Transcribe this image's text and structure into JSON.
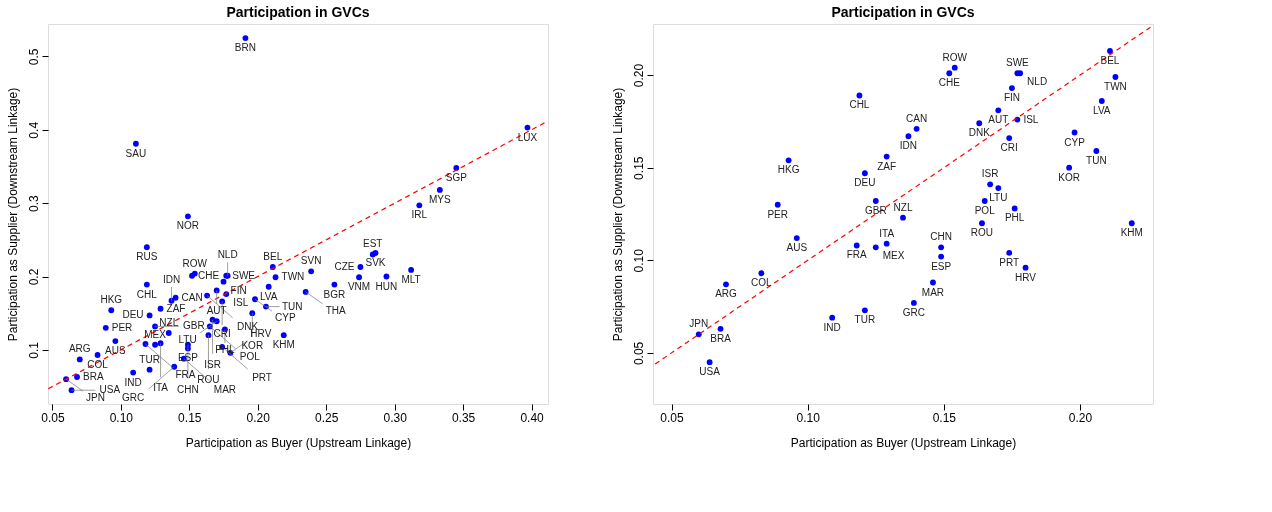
{
  "chart_data": [
    {
      "type": "scatter",
      "title": "Participation in GVCs",
      "xlabel": "Participation as Buyer (Upstream Linkage)",
      "ylabel": "Participation as Supplier (Downstream Linkage)",
      "xlim": [
        0.0468,
        0.412
      ],
      "ylim": [
        0.0262,
        0.5442
      ],
      "xticks": [
        0.05,
        {
          "value": 0.1,
          "label": "0.10"
        },
        0.15,
        {
          "value": 0.2,
          "label": "0.20"
        },
        0.25,
        {
          "value": 0.3,
          "label": "0.30"
        },
        0.35,
        {
          "value": 0.4,
          "label": "0.40"
        }
      ],
      "yticks": [
        0.1,
        0.2,
        0.3,
        0.4,
        0.5
      ],
      "grid": false,
      "series": [
        {
          "marker": "circle",
          "color": "#0000ff",
          "x": [
            0.119,
            0.093,
            0.089,
            0.096,
            0.083,
            0.07,
            0.068,
            0.06,
            0.064,
            0.109,
            0.121,
            0.121,
            0.129,
            0.125,
            0.118,
            0.125,
            0.129,
            0.135,
            0.137,
            0.14,
            0.154,
            0.152,
            0.177,
            0.178,
            0.175,
            0.17,
            0.163,
            0.177,
            0.174,
            0.211,
            0.213,
            0.208,
            0.198,
            0.206,
            0.196,
            0.219,
            0.167,
            0.17,
            0.165,
            0.176,
            0.164,
            0.149,
            0.149,
            0.146,
            0.139,
            0.174,
            0.18,
            0.191,
            0.111,
            0.149,
            0.119,
            0.397,
            0.345,
            0.333,
            0.318,
            0.286,
            0.284,
            0.275,
            0.274,
            0.294,
            0.312,
            0.239,
            0.256,
            0.235
          ],
          "values": [
            0.189,
            0.154,
            0.13,
            0.112,
            0.093,
            0.087,
            0.063,
            0.06,
            0.045,
            0.069,
            0.073,
            0.147,
            0.156,
            0.132,
            0.108,
            0.107,
            0.109,
            0.123,
            0.167,
            0.171,
            0.204,
            0.201,
            0.201,
            0.201,
            0.193,
            0.181,
            0.174,
            0.176,
            0.166,
            0.213,
            0.199,
            0.186,
            0.169,
            0.159,
            0.15,
            0.12,
            0.141,
            0.139,
            0.132,
            0.128,
            0.12,
            0.107,
            0.102,
            0.088,
            0.077,
            0.104,
            0.096,
            0.525,
            0.381,
            0.282,
            0.24,
            0.403,
            0.348,
            0.318,
            0.297,
            0.232,
            0.23,
            0.213,
            0.199,
            0.2,
            0.209,
            0.207,
            0.189,
            0.179
          ]
        },
        {
          "type": "line",
          "color": "#ff0000",
          "line_style": "dashed",
          "x": [
            0.047,
            0.412
          ],
          "values": [
            0.047,
            0.412
          ]
        }
      ],
      "annotations": [
        {
          "text": "CHL",
          "x": 0.119,
          "y": 0.189
        },
        {
          "text": "HKG",
          "x": 0.093,
          "y": 0.154
        },
        {
          "text": "PER",
          "x": 0.089,
          "y": 0.13
        },
        {
          "text": "AUS",
          "x": 0.096,
          "y": 0.112
        },
        {
          "text": "COL",
          "x": 0.083,
          "y": 0.093
        },
        {
          "text": "ARG",
          "x": 0.07,
          "y": 0.087
        },
        {
          "text": "BRA",
          "x": 0.068,
          "y": 0.063
        },
        {
          "text": "JPN",
          "x": 0.06,
          "y": 0.06
        },
        {
          "text": "USA",
          "x": 0.064,
          "y": 0.045
        },
        {
          "text": "IND",
          "x": 0.109,
          "y": 0.069
        },
        {
          "text": "TUR",
          "x": 0.121,
          "y": 0.073
        },
        {
          "text": "DEU",
          "x": 0.121,
          "y": 0.147
        },
        {
          "text": "ZAF",
          "x": 0.129,
          "y": 0.156
        },
        {
          "text": "GBR",
          "x": 0.125,
          "y": 0.132
        },
        {
          "text": "FRA",
          "x": 0.118,
          "y": 0.108
        },
        {
          "text": "MEX",
          "x": 0.125,
          "y": 0.107
        },
        {
          "text": "ITA",
          "x": 0.129,
          "y": 0.109
        },
        {
          "text": "NZL",
          "x": 0.135,
          "y": 0.123
        },
        {
          "text": "IDN",
          "x": 0.137,
          "y": 0.167
        },
        {
          "text": "CAN",
          "x": 0.14,
          "y": 0.171
        },
        {
          "text": "ROW",
          "x": 0.154,
          "y": 0.204
        },
        {
          "text": "CHE",
          "x": 0.152,
          "y": 0.201
        },
        {
          "text": "SWE",
          "x": 0.177,
          "y": 0.201
        },
        {
          "text": "NLD",
          "x": 0.178,
          "y": 0.201
        },
        {
          "text": "FIN",
          "x": 0.175,
          "y": 0.193
        },
        {
          "text": "AUT",
          "x": 0.17,
          "y": 0.181
        },
        {
          "text": "DNK",
          "x": 0.163,
          "y": 0.174
        },
        {
          "text": "ISL",
          "x": 0.177,
          "y": 0.176
        },
        {
          "text": "CRI",
          "x": 0.174,
          "y": 0.166
        },
        {
          "text": "BEL",
          "x": 0.211,
          "y": 0.213
        },
        {
          "text": "TWN",
          "x": 0.213,
          "y": 0.199
        },
        {
          "text": "LVA",
          "x": 0.208,
          "y": 0.186
        },
        {
          "text": "CYP",
          "x": 0.198,
          "y": 0.169
        },
        {
          "text": "TUN",
          "x": 0.206,
          "y": 0.159
        },
        {
          "text": "KOR",
          "x": 0.196,
          "y": 0.15
        },
        {
          "text": "KHM",
          "x": 0.219,
          "y": 0.12
        },
        {
          "text": "ISR",
          "x": 0.167,
          "y": 0.141
        },
        {
          "text": "LTU",
          "x": 0.17,
          "y": 0.139
        },
        {
          "text": "POL",
          "x": 0.165,
          "y": 0.132
        },
        {
          "text": "PHL",
          "x": 0.176,
          "y": 0.128
        },
        {
          "text": "ROU",
          "x": 0.164,
          "y": 0.12
        },
        {
          "text": "CHN",
          "x": 0.149,
          "y": 0.107
        },
        {
          "text": "ESP",
          "x": 0.149,
          "y": 0.102
        },
        {
          "text": "MAR",
          "x": 0.146,
          "y": 0.088
        },
        {
          "text": "GRC",
          "x": 0.139,
          "y": 0.077
        },
        {
          "text": "PRT",
          "x": 0.174,
          "y": 0.104
        },
        {
          "text": "HRV",
          "x": 0.18,
          "y": 0.096
        },
        {
          "text": "BRN",
          "x": 0.191,
          "y": 0.525
        },
        {
          "text": "SAU",
          "x": 0.111,
          "y": 0.381
        },
        {
          "text": "NOR",
          "x": 0.149,
          "y": 0.282
        },
        {
          "text": "RUS",
          "x": 0.119,
          "y": 0.24
        },
        {
          "text": "LUX",
          "x": 0.397,
          "y": 0.403
        },
        {
          "text": "SGP",
          "x": 0.345,
          "y": 0.348
        },
        {
          "text": "MYS",
          "x": 0.333,
          "y": 0.318
        },
        {
          "text": "IRL",
          "x": 0.318,
          "y": 0.297
        },
        {
          "text": "SVK",
          "x": 0.286,
          "y": 0.232
        },
        {
          "text": "EST",
          "x": 0.284,
          "y": 0.23
        },
        {
          "text": "CZE",
          "x": 0.275,
          "y": 0.213
        },
        {
          "text": "VNM",
          "x": 0.274,
          "y": 0.199
        },
        {
          "text": "HUN",
          "x": 0.294,
          "y": 0.2
        },
        {
          "text": "MLT",
          "x": 0.312,
          "y": 0.209
        },
        {
          "text": "SVN",
          "x": 0.239,
          "y": 0.207
        },
        {
          "text": "BGR",
          "x": 0.256,
          "y": 0.189
        },
        {
          "text": "THA",
          "x": 0.235,
          "y": 0.179
        }
      ]
    },
    {
      "type": "scatter",
      "title": "Participation in GVCs",
      "xlabel": "Participation as Buyer (Upstream Linkage)",
      "ylabel": "Participation as Supplier (Downstream Linkage)",
      "xlim": [
        0.0432,
        0.2268
      ],
      "ylim": [
        0.0224,
        0.2276
      ],
      "xticks": [
        0.05,
        {
          "value": 0.1,
          "label": "0.10"
        },
        0.15,
        {
          "value": 0.2,
          "label": "0.20"
        }
      ],
      "yticks": [
        0.05,
        {
          "value": 0.1,
          "label": "0.10"
        },
        0.15,
        {
          "value": 0.2,
          "label": "0.20"
        }
      ],
      "grid": false,
      "series": [
        {
          "marker": "circle",
          "color": "#0000ff",
          "x": [
            0.119,
            0.093,
            0.089,
            0.096,
            0.083,
            0.07,
            0.068,
            0.06,
            0.064,
            0.109,
            0.121,
            0.121,
            0.129,
            0.125,
            0.118,
            0.125,
            0.129,
            0.135,
            0.137,
            0.14,
            0.154,
            0.152,
            0.177,
            0.178,
            0.175,
            0.17,
            0.163,
            0.177,
            0.174,
            0.211,
            0.213,
            0.208,
            0.198,
            0.206,
            0.196,
            0.219,
            0.167,
            0.17,
            0.165,
            0.176,
            0.164,
            0.149,
            0.149,
            0.146,
            0.139,
            0.174,
            0.18
          ],
          "values": [
            0.189,
            0.154,
            0.13,
            0.112,
            0.093,
            0.087,
            0.063,
            0.06,
            0.045,
            0.069,
            0.073,
            0.147,
            0.156,
            0.132,
            0.108,
            0.107,
            0.109,
            0.123,
            0.167,
            0.171,
            0.204,
            0.201,
            0.201,
            0.201,
            0.193,
            0.181,
            0.174,
            0.176,
            0.166,
            0.213,
            0.199,
            0.186,
            0.169,
            0.159,
            0.15,
            0.12,
            0.141,
            0.139,
            0.132,
            0.128,
            0.12,
            0.107,
            0.102,
            0.088,
            0.077,
            0.104,
            0.096
          ]
        },
        {
          "type": "line",
          "color": "#ff0000",
          "line_style": "dashed",
          "x": [
            0.044,
            0.226
          ],
          "values": [
            0.044,
            0.226
          ]
        }
      ],
      "annotations": [
        {
          "text": "CHL",
          "x": 0.119,
          "y": 0.189
        },
        {
          "text": "HKG",
          "x": 0.093,
          "y": 0.154
        },
        {
          "text": "PER",
          "x": 0.089,
          "y": 0.13
        },
        {
          "text": "AUS",
          "x": 0.096,
          "y": 0.112
        },
        {
          "text": "COL",
          "x": 0.083,
          "y": 0.093
        },
        {
          "text": "ARG",
          "x": 0.07,
          "y": 0.087
        },
        {
          "text": "BRA",
          "x": 0.068,
          "y": 0.063
        },
        {
          "text": "JPN",
          "x": 0.06,
          "y": 0.06
        },
        {
          "text": "USA",
          "x": 0.064,
          "y": 0.045
        },
        {
          "text": "IND",
          "x": 0.109,
          "y": 0.069
        },
        {
          "text": "TUR",
          "x": 0.121,
          "y": 0.073
        },
        {
          "text": "DEU",
          "x": 0.121,
          "y": 0.147
        },
        {
          "text": "ZAF",
          "x": 0.129,
          "y": 0.156
        },
        {
          "text": "GBR",
          "x": 0.125,
          "y": 0.132
        },
        {
          "text": "FRA",
          "x": 0.118,
          "y": 0.108
        },
        {
          "text": "MEX",
          "x": 0.125,
          "y": 0.107
        },
        {
          "text": "ITA",
          "x": 0.129,
          "y": 0.109
        },
        {
          "text": "NZL",
          "x": 0.135,
          "y": 0.123
        },
        {
          "text": "IDN",
          "x": 0.137,
          "y": 0.167
        },
        {
          "text": "CAN",
          "x": 0.14,
          "y": 0.171
        },
        {
          "text": "ROW",
          "x": 0.154,
          "y": 0.204
        },
        {
          "text": "CHE",
          "x": 0.152,
          "y": 0.201
        },
        {
          "text": "SWE",
          "x": 0.177,
          "y": 0.201
        },
        {
          "text": "NLD",
          "x": 0.178,
          "y": 0.201
        },
        {
          "text": "FIN",
          "x": 0.175,
          "y": 0.193
        },
        {
          "text": "AUT",
          "x": 0.17,
          "y": 0.181
        },
        {
          "text": "DNK",
          "x": 0.163,
          "y": 0.174
        },
        {
          "text": "ISL",
          "x": 0.177,
          "y": 0.176
        },
        {
          "text": "CRI",
          "x": 0.174,
          "y": 0.166
        },
        {
          "text": "BEL",
          "x": 0.211,
          "y": 0.213
        },
        {
          "text": "TWN",
          "x": 0.213,
          "y": 0.199
        },
        {
          "text": "LVA",
          "x": 0.208,
          "y": 0.186
        },
        {
          "text": "CYP",
          "x": 0.198,
          "y": 0.169
        },
        {
          "text": "TUN",
          "x": 0.206,
          "y": 0.159
        },
        {
          "text": "KOR",
          "x": 0.196,
          "y": 0.15
        },
        {
          "text": "KHM",
          "x": 0.219,
          "y": 0.12
        },
        {
          "text": "ISR",
          "x": 0.167,
          "y": 0.141
        },
        {
          "text": "LTU",
          "x": 0.17,
          "y": 0.139
        },
        {
          "text": "POL",
          "x": 0.165,
          "y": 0.132
        },
        {
          "text": "PHL",
          "x": 0.176,
          "y": 0.128
        },
        {
          "text": "ROU",
          "x": 0.164,
          "y": 0.12
        },
        {
          "text": "CHN",
          "x": 0.149,
          "y": 0.107
        },
        {
          "text": "ESP",
          "x": 0.149,
          "y": 0.102
        },
        {
          "text": "MAR",
          "x": 0.146,
          "y": 0.088
        },
        {
          "text": "GRC",
          "x": 0.139,
          "y": 0.077
        },
        {
          "text": "PRT",
          "x": 0.174,
          "y": 0.104
        },
        {
          "text": "HRV",
          "x": 0.18,
          "y": 0.096
        }
      ]
    }
  ]
}
